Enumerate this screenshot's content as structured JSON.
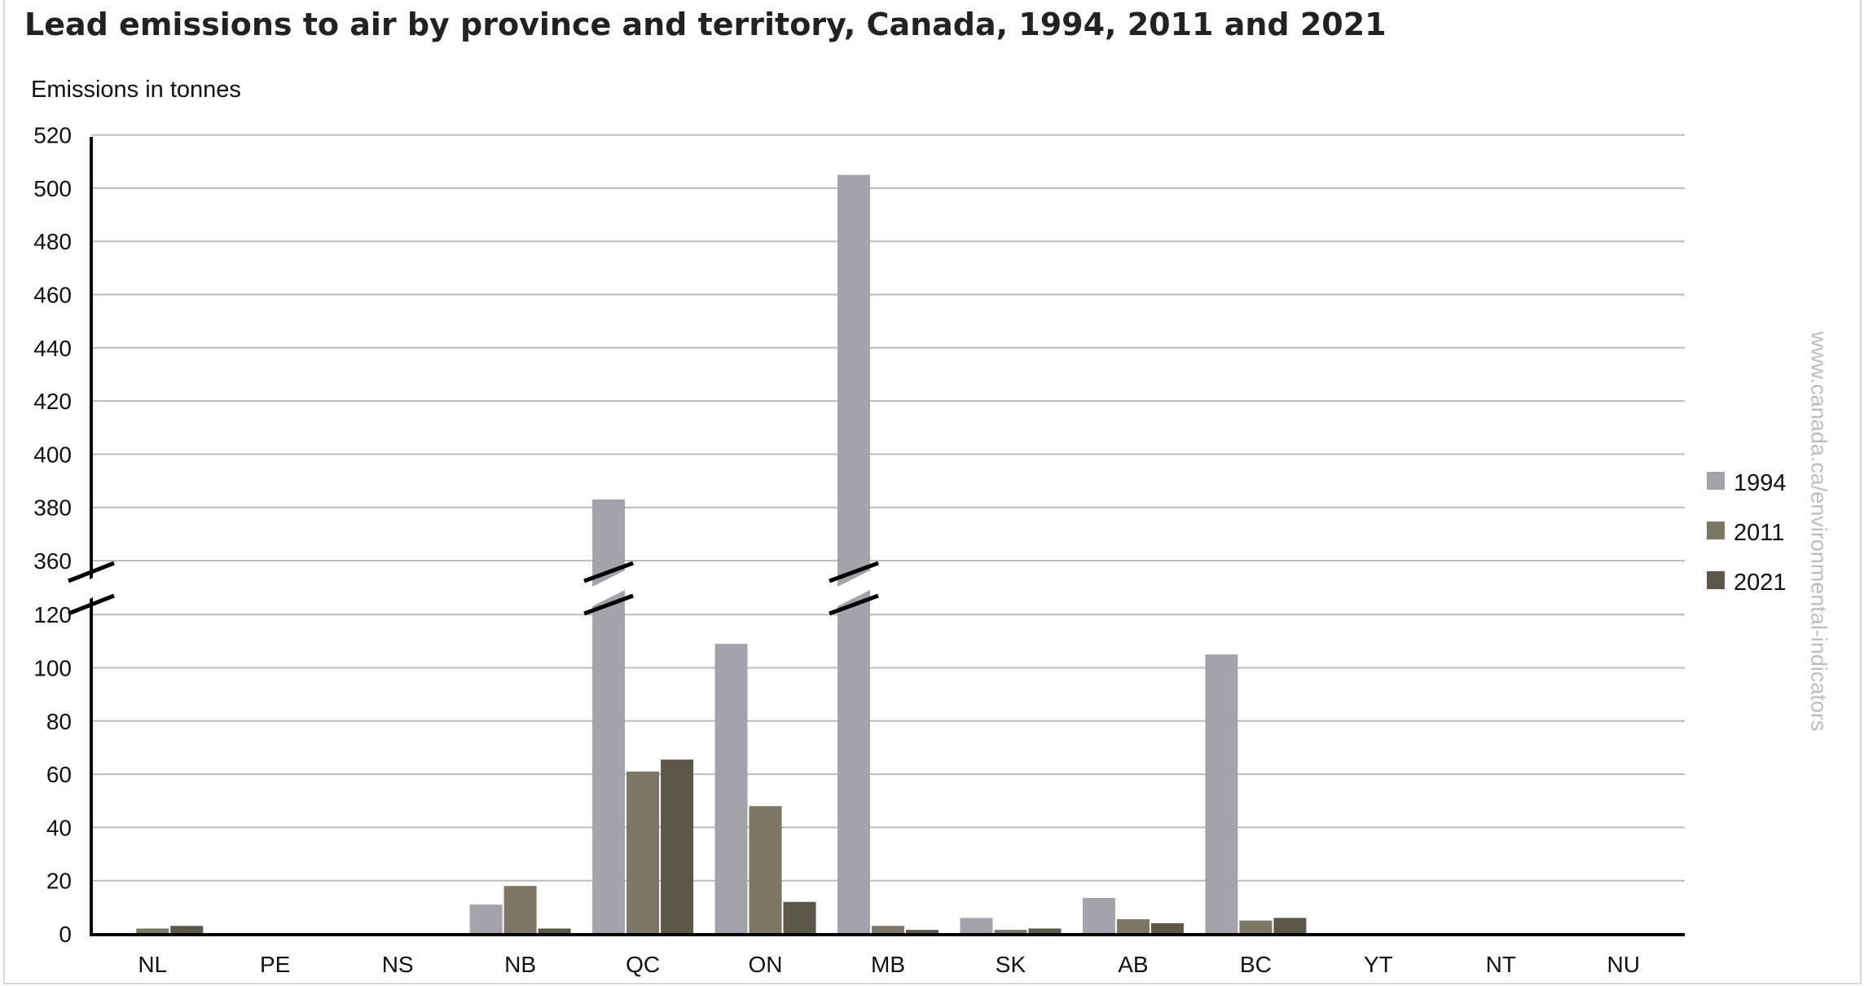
{
  "chart_data": {
    "type": "bar",
    "title": "Lead emissions to air by province and territory, Canada, 1994, 2011 and 2021",
    "ylabel": "Emissions in tonnes",
    "xlabel": "",
    "categories": [
      "NL",
      "PE",
      "NS",
      "NB",
      "QC",
      "ON",
      "MB",
      "SK",
      "AB",
      "BC",
      "YT",
      "NT",
      "NU"
    ],
    "series": [
      {
        "name": "1994",
        "color": "#a4a3ab",
        "values": [
          0,
          0,
          0,
          11,
          383,
          109,
          505,
          6,
          13.5,
          105,
          0,
          0,
          0
        ]
      },
      {
        "name": "2011",
        "color": "#7e7765",
        "values": [
          2,
          0,
          0,
          18,
          61,
          48,
          3,
          1.5,
          5.5,
          5,
          0,
          0,
          0
        ]
      },
      {
        "name": "2021",
        "color": "#5e584b",
        "values": [
          3,
          0,
          0,
          2,
          65.5,
          12,
          1.5,
          2,
          4,
          6,
          0,
          0,
          0
        ]
      }
    ],
    "y_axis_lower_segment": {
      "min": 0,
      "max": 120,
      "ticks": [
        0,
        20,
        40,
        60,
        80,
        100,
        120
      ]
    },
    "y_axis_upper_segment": {
      "min": 360,
      "max": 520,
      "ticks": [
        360,
        380,
        400,
        420,
        440,
        460,
        480,
        500,
        520
      ]
    },
    "axis_break": "between 120 and 360",
    "grid": true,
    "legend_position": "right"
  },
  "watermark": "www.canada.ca/environmental-indicators"
}
